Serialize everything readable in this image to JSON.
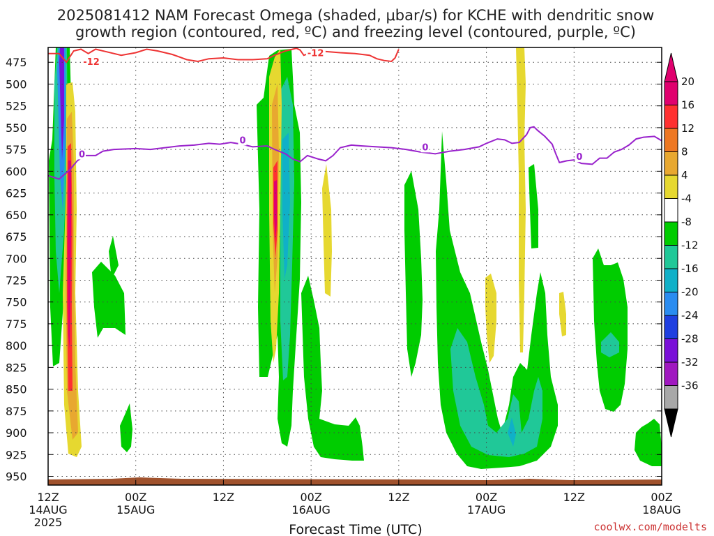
{
  "chart_data": {
    "type": "heatmap",
    "title_lines": [
      "2025081412 NAM Forecast Omega (shaded, μbar/s) for KCHE with dendritic snow",
      "growth region (contoured, red, ºC) and freezing level (contoured, purple, ºC)"
    ],
    "xlabel": "Forecast Time (UTC)",
    "credit": "coolwx.com/modelts",
    "x_hours_range": [
      0,
      84
    ],
    "x_ticks": [
      {
        "hour": 0,
        "line1": "12Z",
        "line2": "14AUG",
        "line3": "2025"
      },
      {
        "hour": 12,
        "line1": "00Z",
        "line2": "15AUG",
        "line3": ""
      },
      {
        "hour": 24,
        "line1": "12Z",
        "line2": "",
        "line3": ""
      },
      {
        "hour": 36,
        "line1": "00Z",
        "line2": "16AUG",
        "line3": ""
      },
      {
        "hour": 48,
        "line1": "12Z",
        "line2": "",
        "line3": ""
      },
      {
        "hour": 60,
        "line1": "00Z",
        "line2": "17AUG",
        "line3": ""
      },
      {
        "hour": 72,
        "line1": "12Z",
        "line2": "",
        "line3": ""
      },
      {
        "hour": 84,
        "line1": "00Z",
        "line2": "18AUG",
        "line3": ""
      }
    ],
    "y_range_hpa": [
      458,
      960
    ],
    "y_ticks": [
      475,
      500,
      525,
      550,
      575,
      600,
      625,
      650,
      675,
      700,
      725,
      750,
      775,
      800,
      825,
      850,
      875,
      900,
      925,
      950
    ],
    "colorbar": {
      "labels": [
        "20",
        "16",
        "12",
        "8",
        "4",
        "-4",
        "-8",
        "-12",
        "-16",
        "-20",
        "-24",
        "-28",
        "-32",
        "-36"
      ],
      "colors": [
        "#e0006e",
        "#ff3030",
        "#ee7722",
        "#e8a830",
        "#e6d830",
        "#ffffff",
        "#00cc00",
        "#20c898",
        "#10b0c8",
        "#2a8cf0",
        "#1f3fe0",
        "#7a10d8",
        "#a018c0",
        "#a8a8a8"
      ],
      "top_arrow_color": "#e0006e",
      "bottom_arrow_color": "#000000"
    },
    "dgz_contour": {
      "label": "-12",
      "color": "#ee3333",
      "points": [
        [
          0,
          465
        ],
        [
          1.5,
          465
        ],
        [
          2.5,
          475
        ],
        [
          3.5,
          462
        ],
        [
          4.5,
          460
        ],
        [
          5.5,
          465
        ],
        [
          6.5,
          460
        ],
        [
          8,
          463
        ],
        [
          10,
          467
        ],
        [
          12,
          464
        ],
        [
          13.5,
          460
        ],
        [
          15,
          462
        ],
        [
          17,
          466
        ],
        [
          19,
          472
        ],
        [
          20.5,
          474
        ],
        [
          22,
          471
        ],
        [
          24,
          470
        ],
        [
          26,
          472
        ],
        [
          28,
          472
        ],
        [
          30,
          471
        ],
        [
          31,
          467
        ],
        [
          32.5,
          462
        ],
        [
          34,
          459
        ],
        [
          34.5,
          461
        ],
        [
          35,
          467
        ],
        [
          36,
          464
        ],
        [
          37,
          462
        ],
        [
          38.5,
          463
        ],
        [
          40,
          464
        ],
        [
          42,
          465
        ],
        [
          44,
          467
        ],
        [
          45,
          471
        ],
        [
          46,
          473
        ],
        [
          47,
          474
        ],
        [
          47.5,
          470
        ],
        [
          48,
          460
        ]
      ],
      "label_positions": [
        [
          4.8,
          478
        ],
        [
          35.5,
          468
        ]
      ]
    },
    "freezing_contour": {
      "label": "0",
      "color": "#9922cc",
      "points": [
        [
          0,
          605
        ],
        [
          1.5,
          609
        ],
        [
          3,
          598
        ],
        [
          4,
          588
        ],
        [
          5,
          582
        ],
        [
          6.5,
          582
        ],
        [
          7.5,
          577
        ],
        [
          9,
          575
        ],
        [
          12,
          574
        ],
        [
          14,
          575
        ],
        [
          16,
          573
        ],
        [
          18,
          571
        ],
        [
          20,
          570
        ],
        [
          22,
          568
        ],
        [
          23.5,
          569
        ],
        [
          25,
          567
        ],
        [
          26.5,
          569
        ],
        [
          28,
          572
        ],
        [
          30,
          571
        ],
        [
          31,
          575
        ],
        [
          32.5,
          580
        ],
        [
          33.5,
          586
        ],
        [
          34.5,
          589
        ],
        [
          35.5,
          582
        ],
        [
          37,
          586
        ],
        [
          38,
          588
        ],
        [
          39,
          582
        ],
        [
          40,
          573
        ],
        [
          41.5,
          570
        ],
        [
          43,
          571
        ],
        [
          45,
          572
        ],
        [
          47,
          573
        ],
        [
          49,
          575
        ],
        [
          51,
          578
        ],
        [
          53,
          580
        ],
        [
          55,
          577
        ],
        [
          57,
          575
        ],
        [
          59,
          572
        ],
        [
          60,
          568
        ],
        [
          61.5,
          563
        ],
        [
          62.5,
          564
        ],
        [
          63.5,
          568
        ],
        [
          64.5,
          567
        ],
        [
          65.5,
          558
        ],
        [
          66,
          550
        ],
        [
          66.5,
          549
        ],
        [
          67,
          553
        ],
        [
          68,
          560
        ],
        [
          69,
          569
        ],
        [
          69.5,
          580
        ],
        [
          70,
          590
        ],
        [
          71,
          588
        ],
        [
          72,
          587
        ],
        [
          73,
          591
        ],
        [
          74.5,
          592
        ],
        [
          75.5,
          585
        ],
        [
          76.5,
          585
        ],
        [
          77.5,
          578
        ],
        [
          78.5,
          575
        ],
        [
          79.5,
          570
        ],
        [
          80.5,
          563
        ],
        [
          81.5,
          561
        ],
        [
          83,
          560
        ],
        [
          84,
          565
        ]
      ],
      "label_positions": [
        [
          4.2,
          584
        ],
        [
          26.2,
          568
        ],
        [
          51.2,
          576
        ],
        [
          72.3,
          587
        ]
      ]
    }
  }
}
